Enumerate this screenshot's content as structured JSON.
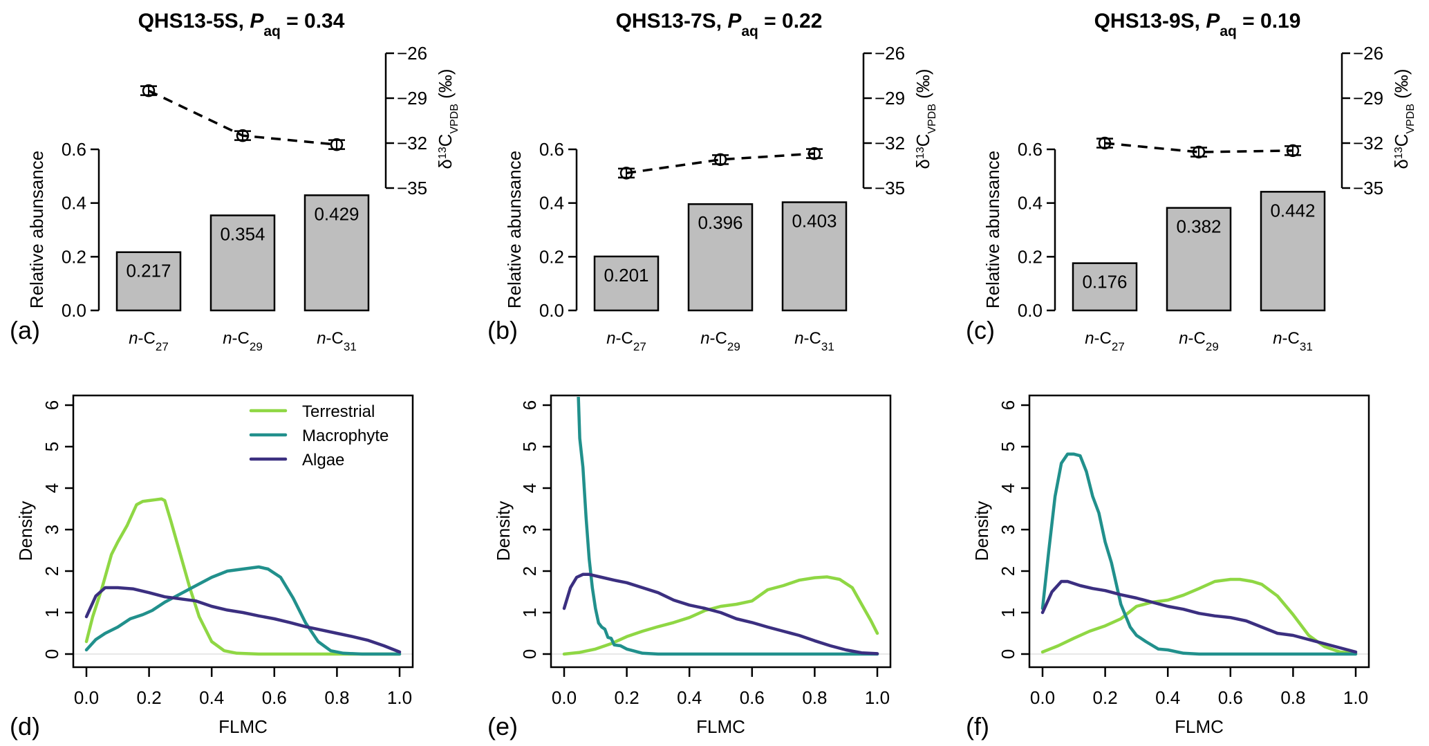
{
  "chart_data": {
    "top_panels": [
      {
        "letter": "(a)",
        "title_sample": "QHS13-5S, ",
        "title_p": "P",
        "title_sub": "aq",
        "title_value": " = 0.34",
        "type": "bar",
        "categories": [
          {
            "prefix": "n",
            "base": "-C",
            "sub": "27"
          },
          {
            "prefix": "n",
            "base": "-C",
            "sub": "29"
          },
          {
            "prefix": "n",
            "base": "-C",
            "sub": "31"
          }
        ],
        "values": [
          0.217,
          0.354,
          0.429
        ],
        "value_labels": [
          "0.217",
          "0.354",
          "0.429"
        ],
        "delta13C": [
          -28.5,
          -31.5,
          -32.1
        ],
        "delta13C_err": [
          0.3,
          0.3,
          0.3
        ]
      },
      {
        "letter": "(b)",
        "title_sample": "QHS13-7S, ",
        "title_p": "P",
        "title_sub": "aq",
        "title_value": " = 0.22",
        "type": "bar",
        "categories": [
          {
            "prefix": "n",
            "base": "-C",
            "sub": "27"
          },
          {
            "prefix": "n",
            "base": "-C",
            "sub": "29"
          },
          {
            "prefix": "n",
            "base": "-C",
            "sub": "31"
          }
        ],
        "values": [
          0.201,
          0.396,
          0.403
        ],
        "value_labels": [
          "0.201",
          "0.396",
          "0.403"
        ],
        "delta13C": [
          -34.0,
          -33.1,
          -32.7
        ],
        "delta13C_err": [
          0.3,
          0.3,
          0.3
        ]
      },
      {
        "letter": "(c)",
        "title_sample": "QHS13-9S, ",
        "title_p": "P",
        "title_sub": "aq",
        "title_value": " = 0.19",
        "type": "bar",
        "categories": [
          {
            "prefix": "n",
            "base": "-C",
            "sub": "27"
          },
          {
            "prefix": "n",
            "base": "-C",
            "sub": "29"
          },
          {
            "prefix": "n",
            "base": "-C",
            "sub": "31"
          }
        ],
        "values": [
          0.176,
          0.382,
          0.442
        ],
        "value_labels": [
          "0.176",
          "0.382",
          "0.442"
        ],
        "delta13C": [
          -32.0,
          -32.6,
          -32.5
        ],
        "delta13C_err": [
          0.3,
          0.3,
          0.3
        ]
      }
    ],
    "top_axes": {
      "ylabel": "Relative abunsance",
      "ylim": [
        0,
        0.6
      ],
      "yticks": [
        0.0,
        0.2,
        0.4,
        0.6
      ],
      "ytick_labels": [
        "0.0",
        "0.2",
        "0.4",
        "0.6"
      ],
      "y2label_delta": "δ",
      "y2label_sup": "13",
      "y2label_C": "C",
      "y2label_sub": "VPDB",
      "y2label_unit": " (‰)",
      "y2lim": [
        -35,
        -26
      ],
      "y2ticks": [
        -26,
        -29,
        -32,
        -35
      ],
      "y2tick_labels": [
        "−26",
        "−29",
        "−32",
        "−35"
      ]
    },
    "bottom_panels": [
      {
        "letter": "(d)",
        "type": "line",
        "show_legend": true,
        "series": [
          {
            "name": "Terrestrial",
            "x": [
              0.0,
              0.02,
              0.05,
              0.08,
              0.1,
              0.13,
              0.16,
              0.18,
              0.2,
              0.22,
              0.24,
              0.25,
              0.27,
              0.3,
              0.33,
              0.36,
              0.4,
              0.44,
              0.48,
              0.55,
              0.65,
              0.8,
              1.0
            ],
            "y": [
              0.3,
              0.9,
              1.6,
              2.4,
              2.7,
              3.1,
              3.6,
              3.68,
              3.7,
              3.72,
              3.74,
              3.7,
              3.2,
              2.4,
              1.6,
              0.9,
              0.3,
              0.08,
              0.02,
              0.0,
              0.0,
              0.0,
              0.0
            ]
          },
          {
            "name": "Macrophyte",
            "x": [
              0.0,
              0.03,
              0.06,
              0.1,
              0.14,
              0.18,
              0.21,
              0.25,
              0.3,
              0.35,
              0.4,
              0.45,
              0.5,
              0.55,
              0.58,
              0.62,
              0.66,
              0.7,
              0.74,
              0.78,
              0.82,
              0.88,
              1.0
            ],
            "y": [
              0.1,
              0.35,
              0.5,
              0.65,
              0.85,
              0.95,
              1.05,
              1.25,
              1.45,
              1.65,
              1.85,
              2.0,
              2.05,
              2.1,
              2.05,
              1.85,
              1.35,
              0.75,
              0.3,
              0.08,
              0.02,
              0.0,
              0.0
            ]
          },
          {
            "name": "Algae",
            "x": [
              0.0,
              0.03,
              0.06,
              0.1,
              0.15,
              0.2,
              0.25,
              0.3,
              0.35,
              0.4,
              0.45,
              0.5,
              0.55,
              0.6,
              0.65,
              0.7,
              0.75,
              0.8,
              0.85,
              0.9,
              0.95,
              1.0
            ],
            "y": [
              0.9,
              1.4,
              1.6,
              1.6,
              1.57,
              1.48,
              1.38,
              1.33,
              1.28,
              1.15,
              1.06,
              1.0,
              0.92,
              0.85,
              0.76,
              0.66,
              0.58,
              0.5,
              0.42,
              0.33,
              0.2,
              0.05
            ]
          }
        ]
      },
      {
        "letter": "(e)",
        "type": "line",
        "show_legend": false,
        "series": [
          {
            "name": "Terrestrial",
            "x": [
              0.0,
              0.05,
              0.1,
              0.15,
              0.2,
              0.25,
              0.3,
              0.35,
              0.4,
              0.45,
              0.5,
              0.55,
              0.6,
              0.65,
              0.7,
              0.75,
              0.8,
              0.84,
              0.88,
              0.92,
              0.95,
              0.98,
              1.0
            ],
            "y": [
              0.0,
              0.04,
              0.12,
              0.25,
              0.42,
              0.55,
              0.66,
              0.76,
              0.88,
              1.05,
              1.15,
              1.2,
              1.28,
              1.55,
              1.65,
              1.78,
              1.84,
              1.86,
              1.8,
              1.6,
              1.2,
              0.8,
              0.5
            ]
          },
          {
            "name": "Macrophyte",
            "x": [
              0.045,
              0.05,
              0.06,
              0.07,
              0.08,
              0.09,
              0.1,
              0.11,
              0.12,
              0.13,
              0.14,
              0.15,
              0.16,
              0.18,
              0.2,
              0.22,
              0.25,
              0.3,
              0.4,
              0.5,
              0.7,
              1.0
            ],
            "y": [
              6.3,
              5.2,
              4.5,
              3.3,
              2.3,
              1.6,
              1.1,
              0.75,
              0.65,
              0.6,
              0.4,
              0.38,
              0.22,
              0.2,
              0.12,
              0.08,
              0.02,
              0.0,
              0.0,
              0.0,
              0.0,
              0.0
            ]
          },
          {
            "name": "Algae",
            "x": [
              0.0,
              0.02,
              0.04,
              0.06,
              0.08,
              0.12,
              0.16,
              0.2,
              0.25,
              0.3,
              0.35,
              0.4,
              0.45,
              0.5,
              0.55,
              0.6,
              0.65,
              0.7,
              0.75,
              0.8,
              0.85,
              0.9,
              0.95,
              1.0
            ],
            "y": [
              1.1,
              1.6,
              1.85,
              1.92,
              1.92,
              1.85,
              1.78,
              1.72,
              1.6,
              1.48,
              1.3,
              1.18,
              1.1,
              1.0,
              0.85,
              0.76,
              0.65,
              0.55,
              0.45,
              0.32,
              0.2,
              0.1,
              0.03,
              0.01
            ]
          }
        ]
      },
      {
        "letter": "(f)",
        "type": "line",
        "show_legend": false,
        "series": [
          {
            "name": "Terrestrial",
            "x": [
              0.0,
              0.05,
              0.1,
              0.15,
              0.2,
              0.25,
              0.3,
              0.35,
              0.4,
              0.45,
              0.5,
              0.55,
              0.6,
              0.63,
              0.67,
              0.7,
              0.75,
              0.8,
              0.85,
              0.9,
              0.95,
              1.0
            ],
            "y": [
              0.05,
              0.2,
              0.38,
              0.55,
              0.68,
              0.85,
              1.15,
              1.25,
              1.3,
              1.42,
              1.58,
              1.75,
              1.8,
              1.8,
              1.75,
              1.68,
              1.4,
              0.95,
              0.45,
              0.18,
              0.05,
              0.02
            ]
          },
          {
            "name": "Macrophyte",
            "x": [
              0.0,
              0.02,
              0.04,
              0.06,
              0.08,
              0.1,
              0.12,
              0.14,
              0.16,
              0.18,
              0.2,
              0.22,
              0.25,
              0.28,
              0.3,
              0.33,
              0.37,
              0.4,
              0.45,
              0.5,
              0.7,
              1.0
            ],
            "y": [
              1.1,
              2.5,
              3.8,
              4.6,
              4.82,
              4.82,
              4.78,
              4.4,
              3.8,
              3.4,
              2.7,
              2.2,
              1.2,
              0.65,
              0.45,
              0.3,
              0.12,
              0.1,
              0.02,
              0.0,
              0.0,
              0.0
            ]
          },
          {
            "name": "Algae",
            "x": [
              0.0,
              0.03,
              0.06,
              0.08,
              0.12,
              0.16,
              0.2,
              0.25,
              0.3,
              0.35,
              0.4,
              0.45,
              0.5,
              0.55,
              0.6,
              0.65,
              0.7,
              0.75,
              0.8,
              0.85,
              0.9,
              0.95,
              1.0
            ],
            "y": [
              1.0,
              1.5,
              1.75,
              1.75,
              1.65,
              1.58,
              1.53,
              1.43,
              1.35,
              1.25,
              1.15,
              1.08,
              0.98,
              0.92,
              0.88,
              0.8,
              0.65,
              0.5,
              0.45,
              0.35,
              0.25,
              0.15,
              0.05
            ]
          }
        ]
      }
    ],
    "bottom_axes": {
      "xlabel": "FLMC",
      "ylabel": "Density",
      "xlim": [
        0,
        1
      ],
      "ylim": [
        0,
        6
      ],
      "xticks": [
        0.0,
        0.2,
        0.4,
        0.6,
        0.8,
        1.0
      ],
      "xtick_labels": [
        "0.0",
        "0.2",
        "0.4",
        "0.6",
        "0.8",
        "1.0"
      ],
      "yticks": [
        0,
        1,
        2,
        3,
        4,
        5,
        6
      ],
      "ytick_labels": [
        "0",
        "1",
        "2",
        "3",
        "4",
        "5",
        "6"
      ]
    },
    "colors": {
      "Terrestrial": "#8fd744",
      "Macrophyte": "#21908c",
      "Algae": "#3b2f80",
      "bar_fill": "#bebebe",
      "zero_line": "#e0e0e0"
    },
    "legend_placement": "top-right"
  }
}
